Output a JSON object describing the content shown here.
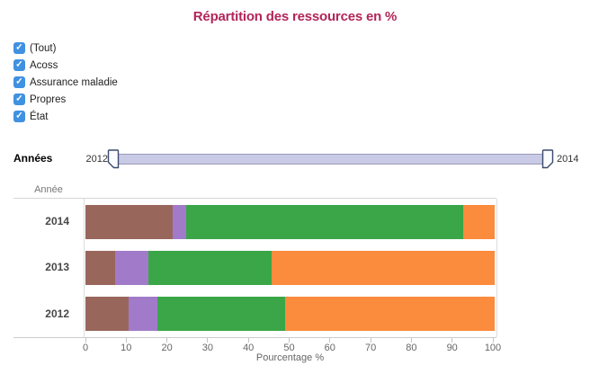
{
  "title": {
    "text": "Répartition des ressources en %",
    "color": "#b22558"
  },
  "filters": {
    "checkbox_color": "#4191e1",
    "items": [
      {
        "label": "(Tout)",
        "checked": true
      },
      {
        "label": "Acoss",
        "checked": true
      },
      {
        "label": "Assurance maladie",
        "checked": true
      },
      {
        "label": "Propres",
        "checked": true
      },
      {
        "label": "État",
        "checked": true
      }
    ]
  },
  "slider": {
    "label": "Années",
    "min_label": "2012",
    "max_label": "2014",
    "track_color": "#c9cae5",
    "track_border": "#9a9ab8",
    "handle_border": "#3a4a6d",
    "handle_fill": "#fbfcff"
  },
  "chart_data": {
    "type": "bar",
    "orientation": "horizontal",
    "stacked": true,
    "row_header": "Année",
    "categories": [
      "2014",
      "2013",
      "2012"
    ],
    "series": [
      {
        "name": "brown",
        "color": "#99665c",
        "values": [
          21.4,
          7.3,
          10.6
        ]
      },
      {
        "name": "purple",
        "color": "#a17bc9",
        "values": [
          3.3,
          8.2,
          7.1
        ]
      },
      {
        "name": "green",
        "color": "#3aa648",
        "values": [
          68.0,
          30.2,
          31.3
        ]
      },
      {
        "name": "orange",
        "color": "#fb8b3d",
        "values": [
          7.7,
          54.7,
          51.4
        ]
      }
    ],
    "xlabel": "Pourcentage %",
    "x_ticks": [
      0,
      10,
      20,
      30,
      40,
      50,
      60,
      70,
      80,
      90,
      100
    ],
    "xlim": [
      0,
      101.3
    ],
    "legend": "none",
    "grid": "off"
  }
}
